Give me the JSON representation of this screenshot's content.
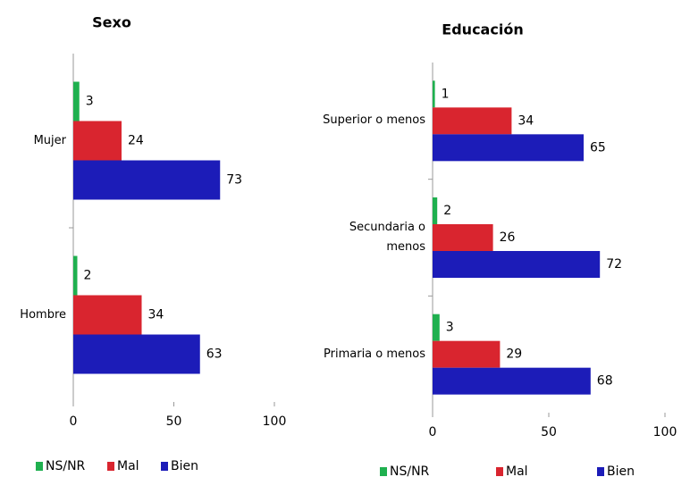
{
  "chart_data": [
    {
      "type": "hbar",
      "title": "Sexo",
      "categories": [
        "Mujer",
        "Hombre"
      ],
      "series": [
        {
          "name": "NS/NR",
          "color": "#1fb04f",
          "values": [
            3,
            2
          ]
        },
        {
          "name": "Mal",
          "color": "#d9252f",
          "values": [
            24,
            34
          ]
        },
        {
          "name": "Bien",
          "color": "#1c1cb8",
          "values": [
            73,
            63
          ]
        }
      ],
      "xlim": [
        0,
        100
      ],
      "xticks": [
        0,
        50,
        100
      ],
      "legend": "bottom"
    },
    {
      "type": "hbar",
      "title": "Educación",
      "categories": [
        "Superior o menos",
        "Secundaria o menos",
        "Primaria o menos"
      ],
      "series": [
        {
          "name": "NS/NR",
          "color": "#1fb04f",
          "values": [
            1,
            2,
            3
          ]
        },
        {
          "name": "Mal",
          "color": "#d9252f",
          "values": [
            34,
            26,
            29
          ]
        },
        {
          "name": "Bien",
          "color": "#1c1cb8",
          "values": [
            65,
            72,
            68
          ]
        }
      ],
      "xlim": [
        0,
        100
      ],
      "xticks": [
        0,
        50,
        100
      ],
      "legend": "bottom"
    }
  ]
}
